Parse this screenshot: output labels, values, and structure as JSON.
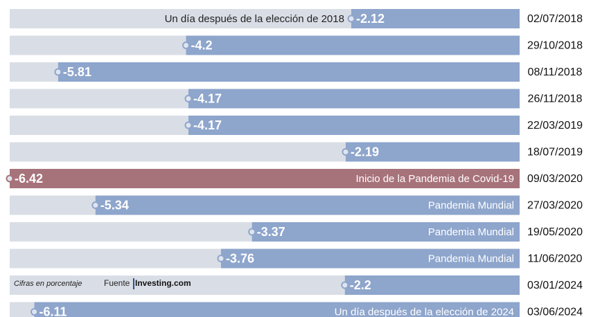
{
  "chart_data": {
    "type": "bar",
    "orientation": "horizontal",
    "categories": [
      "02/07/2018",
      "29/10/2018",
      "08/11/2018",
      "26/11/2018",
      "22/03/2019",
      "18/07/2019",
      "09/03/2020",
      "27/03/2020",
      "19/05/2020",
      "11/06/2020",
      "03/01/2024",
      "03/06/2024"
    ],
    "values": [
      -2.12,
      -4.2,
      -5.81,
      -4.17,
      -4.17,
      -2.19,
      -6.42,
      -5.34,
      -3.37,
      -3.76,
      -2.2,
      -6.11
    ],
    "annotations": [
      "Un día después de la elección de 2018",
      null,
      null,
      null,
      null,
      null,
      "Inicio de la Pandemia de Covid-19",
      "Pandemia Mundial",
      "Pandemia Mundial",
      "Pandemia Mundial",
      null,
      "Un día después de la elección de 2024"
    ],
    "colors": [
      "#8ea5cc",
      "#8ea5cc",
      "#8ea5cc",
      "#8ea5cc",
      "#8ea5cc",
      "#8ea5cc",
      "#a7737b",
      "#8ea5cc",
      "#8ea5cc",
      "#8ea5cc",
      "#8ea5cc",
      "#8ea5cc"
    ],
    "note": "Cifras en porcentaje",
    "source_label": "Fuente",
    "source": "Investing.com"
  }
}
